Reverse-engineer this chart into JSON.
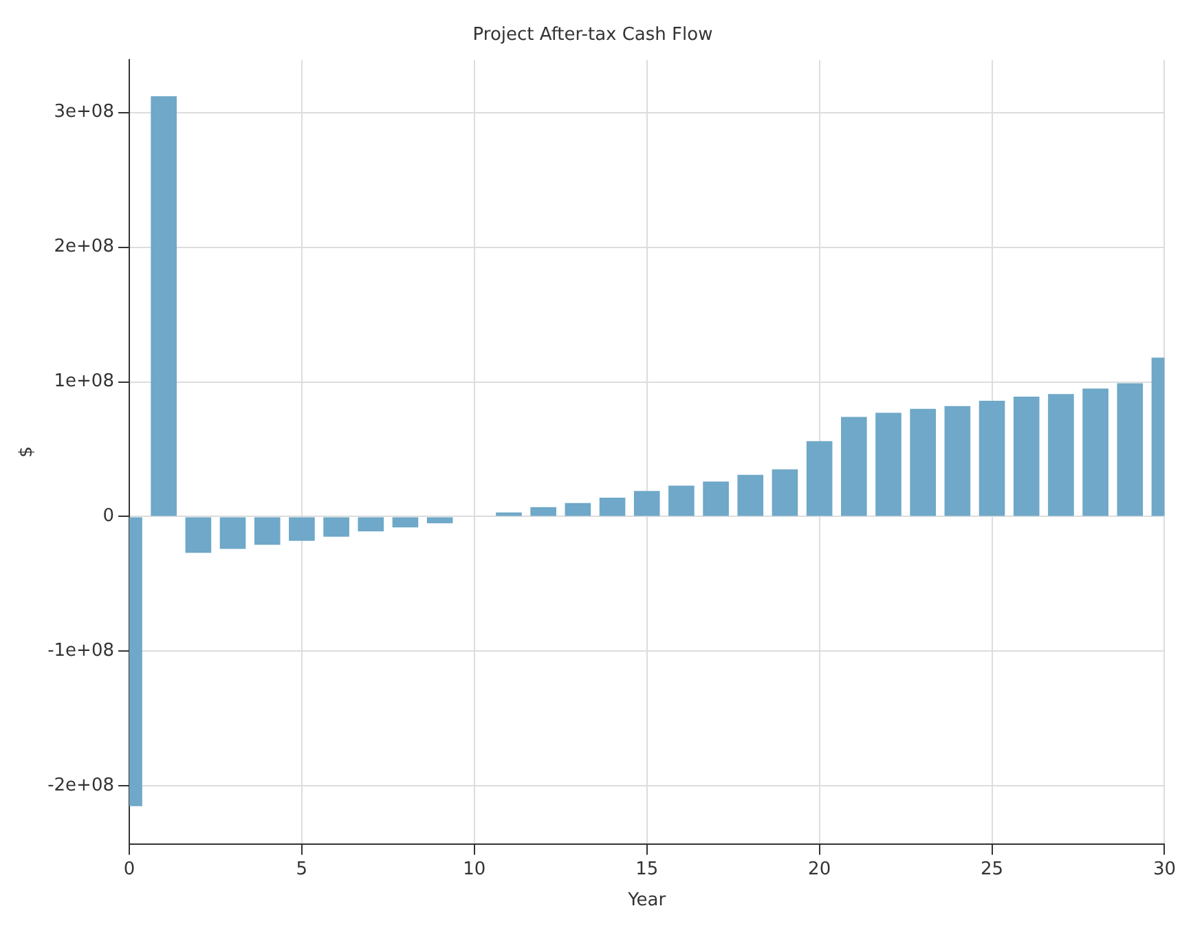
{
  "chart_data": {
    "type": "bar",
    "title": "Project After-tax Cash Flow",
    "xlabel": "Year",
    "ylabel": "$",
    "x": [
      0,
      1,
      2,
      3,
      4,
      5,
      6,
      7,
      8,
      9,
      10,
      11,
      12,
      13,
      14,
      15,
      16,
      17,
      18,
      19,
      20,
      21,
      22,
      23,
      24,
      25,
      26,
      27,
      28,
      29,
      30
    ],
    "values": [
      -215000000,
      312000000,
      -27000000,
      -24000000,
      -21000000,
      -18000000,
      -15000000,
      -11000000,
      -8000000,
      -5000000,
      0,
      3000000,
      7000000,
      10000000,
      14000000,
      19000000,
      23000000,
      26000000,
      31000000,
      35000000,
      56000000,
      74000000,
      77000000,
      80000000,
      82000000,
      86000000,
      89000000,
      91000000,
      95000000,
      99000000,
      118000000
    ],
    "color": "#6fa8c8",
    "xlim": [
      0,
      30
    ],
    "xticks": [
      0,
      5,
      10,
      15,
      20,
      25,
      30
    ],
    "ylim": [
      -243000000,
      339000000
    ],
    "yticks": [
      {
        "value": -200000000,
        "label": "-2e+08"
      },
      {
        "value": -100000000,
        "label": "-1e+08"
      },
      {
        "value": 0,
        "label": "0"
      },
      {
        "value": 100000000,
        "label": "1e+08"
      },
      {
        "value": 200000000,
        "label": "2e+08"
      },
      {
        "value": 300000000,
        "label": "3e+08"
      }
    ],
    "grid": true,
    "legend": false
  }
}
